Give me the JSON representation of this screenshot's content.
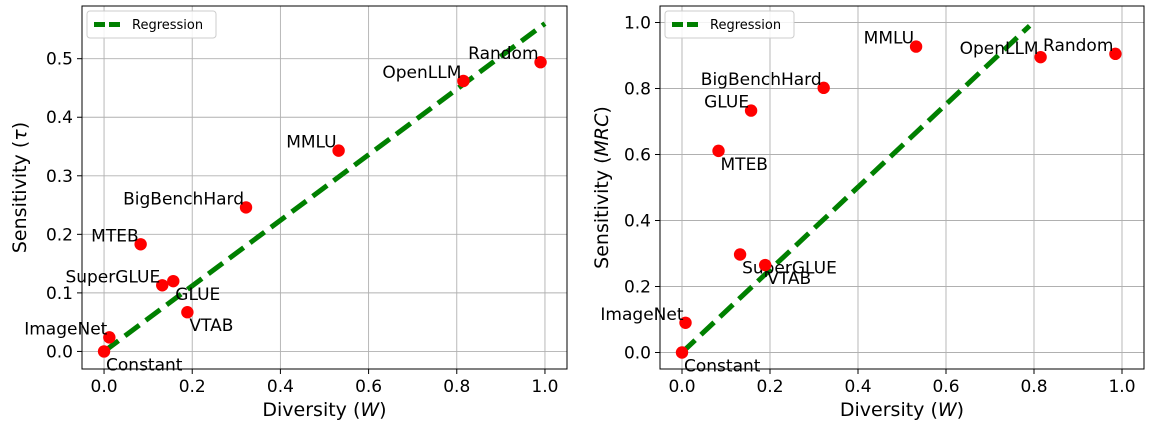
{
  "chart_data": [
    {
      "type": "scatter",
      "xlabel": "Diversity",
      "xlabel_symbol": "W",
      "ylabel": "Sensitivity",
      "ylabel_symbol": "τ",
      "xlim": [
        -0.05,
        1.05
      ],
      "ylim": [
        -0.03,
        0.59
      ],
      "xticks": [
        0.0,
        0.2,
        0.4,
        0.6,
        0.8,
        1.0
      ],
      "xtick_labels": [
        "0.0",
        "0.2",
        "0.4",
        "0.6",
        "0.8",
        "1.0"
      ],
      "yticks": [
        0.0,
        0.1,
        0.2,
        0.3,
        0.4,
        0.5
      ],
      "ytick_labels": [
        "0.0",
        "0.1",
        "0.2",
        "0.3",
        "0.4",
        "0.5"
      ],
      "grid": true,
      "legend": {
        "placement": "top-left",
        "entries": [
          "Regression"
        ]
      },
      "colors": {
        "points": "#ff0000",
        "regression": "#008000"
      },
      "points": [
        {
          "label": "Random",
          "x": 0.99,
          "y": 0.494,
          "label_anchor": "end",
          "label_side": "above"
        },
        {
          "label": "OpenLLM",
          "x": 0.815,
          "y": 0.462,
          "label_anchor": "end",
          "label_side": "above"
        },
        {
          "label": "MMLU",
          "x": 0.532,
          "y": 0.343,
          "label_anchor": "end",
          "label_side": "above"
        },
        {
          "label": "BigBenchHard",
          "x": 0.322,
          "y": 0.246,
          "label_anchor": "end",
          "label_side": "above"
        },
        {
          "label": "MTEB",
          "x": 0.083,
          "y": 0.183,
          "label_anchor": "end",
          "label_side": "above"
        },
        {
          "label": "SuperGLUE",
          "x": 0.132,
          "y": 0.113,
          "label_anchor": "end",
          "label_side": "above"
        },
        {
          "label": "GLUE",
          "x": 0.157,
          "y": 0.12,
          "label_anchor": "start",
          "label_side": "below"
        },
        {
          "label": "VTAB",
          "x": 0.189,
          "y": 0.067,
          "label_anchor": "start",
          "label_side": "below"
        },
        {
          "label": "ImageNet",
          "x": 0.012,
          "y": 0.024,
          "label_anchor": "end",
          "label_side": "above"
        },
        {
          "label": "Constant",
          "x": 0.0,
          "y": 0.0,
          "label_anchor": "start",
          "label_side": "below"
        }
      ],
      "regression": {
        "x": [
          0.0,
          1.0
        ],
        "y": [
          0.0,
          0.56
        ]
      }
    },
    {
      "type": "scatter",
      "xlabel": "Diversity",
      "xlabel_symbol": "W",
      "ylabel": "Sensitivity",
      "ylabel_symbol": "MRC",
      "xlim": [
        -0.05,
        1.05
      ],
      "ylim": [
        -0.05,
        1.05
      ],
      "xticks": [
        0.0,
        0.2,
        0.4,
        0.6,
        0.8,
        1.0
      ],
      "xtick_labels": [
        "0.0",
        "0.2",
        "0.4",
        "0.6",
        "0.8",
        "1.0"
      ],
      "yticks": [
        0.0,
        0.2,
        0.4,
        0.6,
        0.8,
        1.0
      ],
      "ytick_labels": [
        "0.0",
        "0.2",
        "0.4",
        "0.6",
        "0.8",
        "1.0"
      ],
      "grid": true,
      "legend": {
        "placement": "top-left",
        "entries": [
          "Regression"
        ]
      },
      "colors": {
        "points": "#ff0000",
        "regression": "#008000"
      },
      "points": [
        {
          "label": "Random",
          "x": 0.985,
          "y": 0.905,
          "label_anchor": "end",
          "label_side": "above"
        },
        {
          "label": "OpenLLM",
          "x": 0.815,
          "y": 0.895,
          "label_anchor": "end",
          "label_side": "above"
        },
        {
          "label": "MMLU",
          "x": 0.532,
          "y": 0.927,
          "label_anchor": "end",
          "label_side": "above"
        },
        {
          "label": "BigBenchHard",
          "x": 0.322,
          "y": 0.802,
          "label_anchor": "end",
          "label_side": "above"
        },
        {
          "label": "GLUE",
          "x": 0.157,
          "y": 0.733,
          "label_anchor": "end",
          "label_side": "above"
        },
        {
          "label": "MTEB",
          "x": 0.083,
          "y": 0.611,
          "label_anchor": "start",
          "label_side": "below"
        },
        {
          "label": "SuperGLUE",
          "x": 0.132,
          "y": 0.297,
          "label_anchor": "start",
          "label_side": "below"
        },
        {
          "label": "VTAB",
          "x": 0.189,
          "y": 0.265,
          "label_anchor": "start",
          "label_side": "below"
        },
        {
          "label": "ImageNet",
          "x": 0.008,
          "y": 0.09,
          "label_anchor": "end",
          "label_side": "above"
        },
        {
          "label": "Constant",
          "x": 0.0,
          "y": 0.0,
          "label_anchor": "start",
          "label_side": "below"
        }
      ],
      "regression": {
        "x": [
          0.0,
          0.79
        ],
        "y": [
          0.0,
          0.99
        ]
      }
    }
  ]
}
